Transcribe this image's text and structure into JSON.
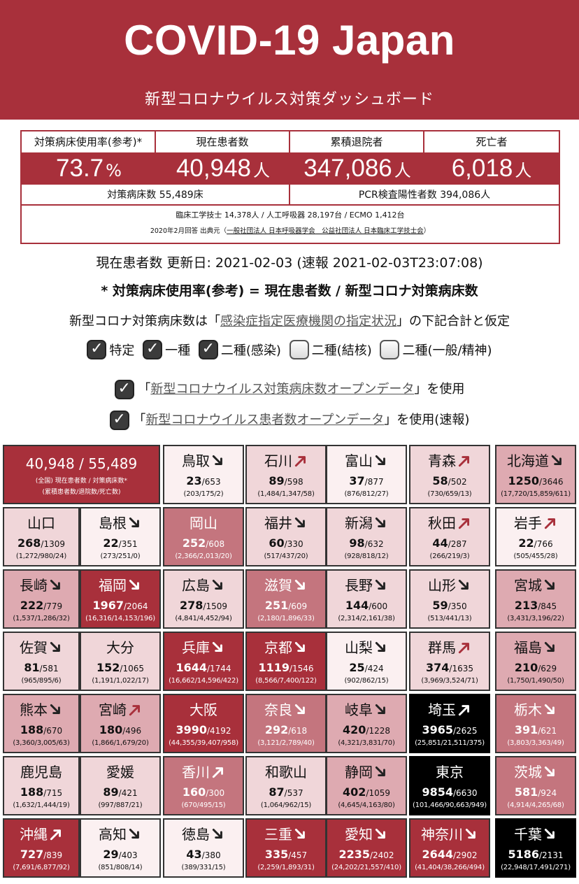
{
  "header": {
    "title": "COVID-19 Japan",
    "subtitle": "新型コロナウイルス対策ダッシュボード"
  },
  "stats": {
    "labels": [
      "対策病床使用率(参考)*",
      "現在患者数",
      "累積退院者",
      "死亡者"
    ],
    "values": [
      {
        "num": "73.7",
        "unit": "%"
      },
      {
        "num": "40,948",
        "unit": "人"
      },
      {
        "num": "347,086",
        "unit": "人"
      },
      {
        "num": "6,018",
        "unit": "人"
      }
    ],
    "footer_left": "対策病床数 55,489床",
    "footer_right": "PCR検査陽性者数 394,086人",
    "note1": "臨床工学技士 14,378人 / 人工呼吸器 28,197台 / ECMO 1,412台",
    "note2_prefix": "2020年2月回答 出典元（",
    "note2_link": "一般社団法人 日本呼吸器学会　公益社団法人 日本臨床工学技士会",
    "note2_suffix": "）"
  },
  "info": {
    "update_line": "現在患者数 更新日: 2021-02-03 (速報 2021-02-03T23:07:08)",
    "formula_line": "* 対策病床使用率(参考) = 現在患者数 / 新型コロナ対策病床数",
    "assume_prefix": "新型コロナ対策病床数は「",
    "assume_link": "感染症指定医療機関の指定状況",
    "assume_suffix": "」の下記合計と仮定"
  },
  "checks": [
    {
      "label": "特定",
      "checked": true
    },
    {
      "label": "一種",
      "checked": true
    },
    {
      "label": "二種(感染)",
      "checked": true
    },
    {
      "label": "二種(結核)",
      "checked": false
    },
    {
      "label": "二種(一般/精神)",
      "checked": false
    }
  ],
  "sources": {
    "beds": {
      "prefix": "「",
      "link": "新型コロナウイルス対策病床数オープンデータ",
      "suffix": "」を使用",
      "checked": true
    },
    "patients": {
      "prefix": "「",
      "link": "新型コロナウイルス患者数オープンデータ",
      "suffix": "」を使用(速報)",
      "checked": true
    }
  },
  "summary_tile": {
    "main": "40,948 / 55,489",
    "sub1": "(全国) 現在患者数 / 対策病床数*",
    "sub2": "(累積患者数/退院数/死亡数)"
  },
  "prefectures": [
    {
      "name": "鳥取",
      "current": "23",
      "beds": "/653",
      "sub": "(203/175/2)",
      "level": 0,
      "trend": "down"
    },
    {
      "name": "石川",
      "current": "89",
      "beds": "/598",
      "sub": "(1,484/1,347/58)",
      "level": 1,
      "trend": "up"
    },
    {
      "name": "富山",
      "current": "37",
      "beds": "/877",
      "sub": "(876/812/27)",
      "level": 0,
      "trend": "down"
    },
    {
      "name": "青森",
      "current": "58",
      "beds": "/502",
      "sub": "(730/659/13)",
      "level": 1,
      "trend": "up"
    },
    {
      "name": "北海道",
      "current": "1250",
      "beds": "/3646",
      "sub": "(17,720/15,859/611)",
      "level": 2,
      "trend": "down"
    },
    {
      "name": "山口",
      "current": "268",
      "beds": "/1309",
      "sub": "(1,272/980/24)",
      "level": 1,
      "trend": "none"
    },
    {
      "name": "島根",
      "current": "22",
      "beds": "/351",
      "sub": "(273/251/0)",
      "level": 0,
      "trend": "down"
    },
    {
      "name": "岡山",
      "current": "252",
      "beds": "/608",
      "sub": "(2,366/2,013/20)",
      "level": 3,
      "trend": "none"
    },
    {
      "name": "福井",
      "current": "60",
      "beds": "/330",
      "sub": "(517/437/20)",
      "level": 1,
      "trend": "down"
    },
    {
      "name": "新潟",
      "current": "98",
      "beds": "/632",
      "sub": "(928/818/12)",
      "level": 1,
      "trend": "down"
    },
    {
      "name": "秋田",
      "current": "44",
      "beds": "/287",
      "sub": "(266/219/3)",
      "level": 1,
      "trend": "up"
    },
    {
      "name": "岩手",
      "current": "22",
      "beds": "/766",
      "sub": "(505/455/28)",
      "level": 0,
      "trend": "up"
    },
    {
      "name": "長崎",
      "current": "222",
      "beds": "/779",
      "sub": "(1,537/1,286/32)",
      "level": 2,
      "trend": "down"
    },
    {
      "name": "福岡",
      "current": "1967",
      "beds": "/2064",
      "sub": "(16,316/14,153/196)",
      "level": 4,
      "trend": "down"
    },
    {
      "name": "広島",
      "current": "278",
      "beds": "/1509",
      "sub": "(4,841/4,452/94)",
      "level": 1,
      "trend": "down"
    },
    {
      "name": "滋賀",
      "current": "251",
      "beds": "/609",
      "sub": "(2,180/1,896/33)",
      "level": 3,
      "trend": "down"
    },
    {
      "name": "長野",
      "current": "144",
      "beds": "/600",
      "sub": "(2,314/2,161/38)",
      "level": 1,
      "trend": "down"
    },
    {
      "name": "山形",
      "current": "59",
      "beds": "/350",
      "sub": "(513/441/13)",
      "level": 1,
      "trend": "down"
    },
    {
      "name": "宮城",
      "current": "213",
      "beds": "/845",
      "sub": "(3,431/3,196/22)",
      "level": 2,
      "trend": "down"
    },
    {
      "name": "佐賀",
      "current": "81",
      "beds": "/581",
      "sub": "(965/895/6)",
      "level": 1,
      "trend": "down"
    },
    {
      "name": "大分",
      "current": "152",
      "beds": "/1065",
      "sub": "(1,191/1,022/17)",
      "level": 1,
      "trend": "none"
    },
    {
      "name": "兵庫",
      "current": "1644",
      "beds": "/1744",
      "sub": "(16,662/14,596/422)",
      "level": 4,
      "trend": "down"
    },
    {
      "name": "京都",
      "current": "1119",
      "beds": "/1546",
      "sub": "(8,566/7,400/122)",
      "level": 4,
      "trend": "down"
    },
    {
      "name": "山梨",
      "current": "25",
      "beds": "/424",
      "sub": "(902/862/15)",
      "level": 0,
      "trend": "down"
    },
    {
      "name": "群馬",
      "current": "374",
      "beds": "/1635",
      "sub": "(3,969/3,524/71)",
      "level": 1,
      "trend": "up"
    },
    {
      "name": "福島",
      "current": "210",
      "beds": "/629",
      "sub": "(1,750/1,490/50)",
      "level": 2,
      "trend": "down"
    },
    {
      "name": "熊本",
      "current": "188",
      "beds": "/670",
      "sub": "(3,360/3,005/63)",
      "level": 2,
      "trend": "down"
    },
    {
      "name": "宮崎",
      "current": "180",
      "beds": "/496",
      "sub": "(1,866/1,679/20)",
      "level": 2,
      "trend": "up"
    },
    {
      "name": "大阪",
      "current": "3990",
      "beds": "/4192",
      "sub": "(44,355/39,407/958)",
      "level": 4,
      "trend": "none"
    },
    {
      "name": "奈良",
      "current": "292",
      "beds": "/618",
      "sub": "(3,121/2,789/40)",
      "level": 3,
      "trend": "down"
    },
    {
      "name": "岐阜",
      "current": "420",
      "beds": "/1228",
      "sub": "(4,321/3,831/70)",
      "level": 2,
      "trend": "down"
    },
    {
      "name": "埼玉",
      "current": "3965",
      "beds": "/2625",
      "sub": "(25,851/21,511/375)",
      "level": 5,
      "trend": "up"
    },
    {
      "name": "栃木",
      "current": "391",
      "beds": "/621",
      "sub": "(3,803/3,363/49)",
      "level": 3,
      "trend": "down"
    },
    {
      "name": "鹿児島",
      "current": "188",
      "beds": "/715",
      "sub": "(1,632/1,444/19)",
      "level": 1,
      "trend": "none"
    },
    {
      "name": "愛媛",
      "current": "89",
      "beds": "/421",
      "sub": "(997/887/21)",
      "level": 1,
      "trend": "none"
    },
    {
      "name": "香川",
      "current": "160",
      "beds": "/300",
      "sub": "(670/495/15)",
      "level": 3,
      "trend": "up"
    },
    {
      "name": "和歌山",
      "current": "87",
      "beds": "/537",
      "sub": "(1,064/962/15)",
      "level": 1,
      "trend": "none"
    },
    {
      "name": "静岡",
      "current": "402",
      "beds": "/1059",
      "sub": "(4,645/4,163/80)",
      "level": 2,
      "trend": "down"
    },
    {
      "name": "東京",
      "current": "9854",
      "beds": "/6630",
      "sub": "(101,466/90,663/949)",
      "level": 5,
      "trend": "none"
    },
    {
      "name": "茨城",
      "current": "581",
      "beds": "/924",
      "sub": "(4,914/4,265/68)",
      "level": 3,
      "trend": "down"
    },
    {
      "name": "沖縄",
      "current": "727",
      "beds": "/839",
      "sub": "(7,691/6,877/92)",
      "level": 4,
      "trend": "up"
    },
    {
      "name": "高知",
      "current": "29",
      "beds": "/403",
      "sub": "(851/808/14)",
      "level": 0,
      "trend": "down"
    },
    {
      "name": "徳島",
      "current": "43",
      "beds": "/380",
      "sub": "(389/331/15)",
      "level": 0,
      "trend": "down"
    },
    {
      "name": "三重",
      "current": "335",
      "beds": "/457",
      "sub": "(2,259/1,893/31)",
      "level": 4,
      "trend": "down"
    },
    {
      "name": "愛知",
      "current": "2235",
      "beds": "/2402",
      "sub": "(24,202/21,557/410)",
      "level": 4,
      "trend": "down"
    },
    {
      "name": "神奈川",
      "current": "2644",
      "beds": "/2902",
      "sub": "(41,404/38,266/494)",
      "level": 4,
      "trend": "down"
    },
    {
      "name": "千葉",
      "current": "5186",
      "beds": "/2131",
      "sub": "(22,948/17,491/271)",
      "level": 5,
      "trend": "down"
    }
  ]
}
